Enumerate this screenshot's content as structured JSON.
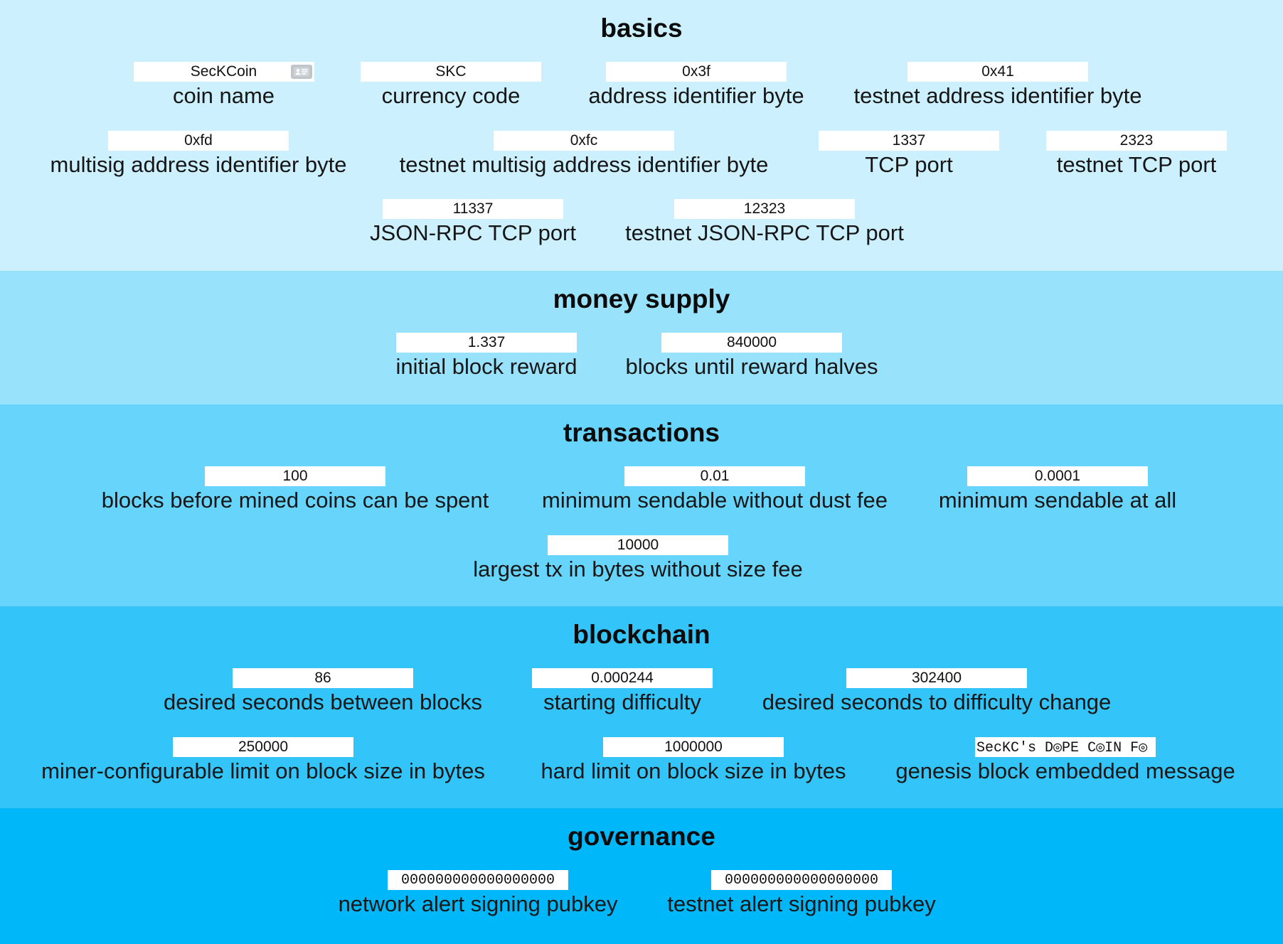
{
  "colors": {
    "basics_bg": "#ccf0fd",
    "money_supply_bg": "#99e2fc",
    "transactions_bg": "#66d4fb",
    "blockchain_bg": "#33c5fa",
    "governance_bg": "#00b7f9"
  },
  "icons": {
    "coin_name_icon": "contact-card-icon"
  },
  "sections": {
    "basics": {
      "title": "basics",
      "fields": {
        "coin_name": {
          "value": "SecKCoin",
          "label": "coin name"
        },
        "currency_code": {
          "value": "SKC",
          "label": "currency code"
        },
        "address_identifier_byte": {
          "value": "0x3f",
          "label": "address identifier byte"
        },
        "testnet_address_identifier_byte": {
          "value": "0x41",
          "label": "testnet address identifier byte"
        },
        "multisig_address_identifier_byte": {
          "value": "0xfd",
          "label": "multisig address identifier byte"
        },
        "testnet_multisig_address_identifier_byte": {
          "value": "0xfc",
          "label": "testnet multisig address identifier byte"
        },
        "tcp_port": {
          "value": "1337",
          "label": "TCP port"
        },
        "testnet_tcp_port": {
          "value": "2323",
          "label": "testnet TCP port"
        },
        "json_rpc_tcp_port": {
          "value": "11337",
          "label": "JSON-RPC TCP port"
        },
        "testnet_json_rpc_tcp_port": {
          "value": "12323",
          "label": "testnet JSON-RPC TCP port"
        }
      }
    },
    "money_supply": {
      "title": "money supply",
      "fields": {
        "initial_block_reward": {
          "value": "1.337",
          "label": "initial block reward"
        },
        "blocks_until_reward_halves": {
          "value": "840000",
          "label": "blocks until reward halves"
        }
      }
    },
    "transactions": {
      "title": "transactions",
      "fields": {
        "blocks_before_mined_coins_can_be_spent": {
          "value": "100",
          "label": "blocks before mined coins can be spent"
        },
        "minimum_sendable_without_dust_fee": {
          "value": "0.01",
          "label": "minimum sendable without dust fee"
        },
        "minimum_sendable_at_all": {
          "value": "0.0001",
          "label": "minimum sendable at all"
        },
        "largest_tx_in_bytes_without_size_fee": {
          "value": "10000",
          "label": "largest tx in bytes without size fee"
        }
      }
    },
    "blockchain": {
      "title": "blockchain",
      "fields": {
        "desired_seconds_between_blocks": {
          "value": "86",
          "label": "desired seconds between blocks"
        },
        "starting_difficulty": {
          "value": "0.000244",
          "label": "starting difficulty"
        },
        "desired_seconds_to_difficulty_change": {
          "value": "302400",
          "label": "desired seconds to difficulty change"
        },
        "miner_configurable_limit_on_block_size": {
          "value": "250000",
          "label": "miner-configurable limit on block size in bytes"
        },
        "hard_limit_on_block_size": {
          "value": "1000000",
          "label": "hard limit on block size in bytes"
        },
        "genesis_block_embedded_message": {
          "value": "SecKC's D◎PE C◎IN F◎",
          "label": "genesis block embedded message"
        }
      }
    },
    "governance": {
      "title": "governance",
      "fields": {
        "network_alert_signing_pubkey": {
          "value": "000000000000000000",
          "label": "network alert signing pubkey"
        },
        "testnet_alert_signing_pubkey": {
          "value": "000000000000000000",
          "label": "testnet alert signing pubkey"
        }
      }
    }
  }
}
